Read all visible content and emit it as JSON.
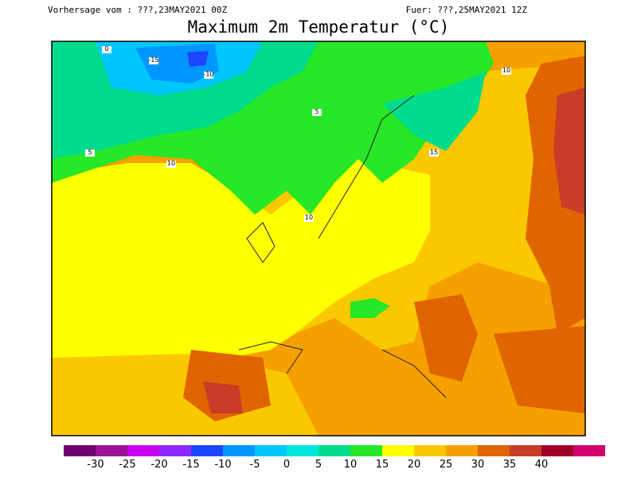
{
  "header": {
    "run": "Vorhersage vom : ???,23MAY2021 00Z",
    "valid": "Fuer: ???,25MAY2021 12Z",
    "title": "Maximum 2m Temperatur (°C)"
  },
  "map": {
    "contour_labels": [
      10,
      5,
      -15,
      -10,
      0,
      10,
      15,
      10,
      5
    ]
  },
  "legend": {
    "colors": [
      "#6e0070",
      "#9b1496",
      "#c800f0",
      "#8c28ff",
      "#1e46ff",
      "#0096ff",
      "#00c8ff",
      "#00e6dc",
      "#00dc8c",
      "#28e628",
      "#ffff00",
      "#fac800",
      "#f5a000",
      "#e06400",
      "#c83c28",
      "#a00028",
      "#d2006e"
    ],
    "ticks": [
      -30,
      -25,
      -20,
      -15,
      -10,
      -5,
      0,
      5,
      10,
      15,
      20,
      25,
      30,
      35,
      40
    ]
  }
}
